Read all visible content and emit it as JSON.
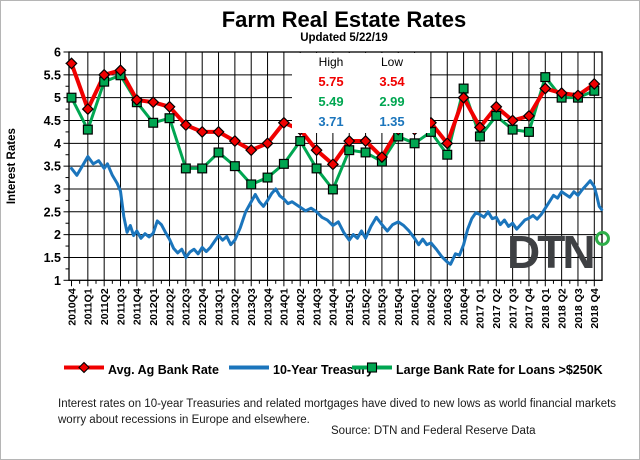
{
  "title": "Farm Real Estate Rates",
  "subtitle": "Updated  5/22/19",
  "stats": {
    "high_header": "High",
    "low_header": "Low",
    "rows": [
      {
        "series": "Avg. Ag Bank Rate",
        "high": "5.75",
        "low": "3.54",
        "color": "#f00000"
      },
      {
        "series": "Large Bank Rate for Loans >$250K",
        "high": "5.49",
        "low": "2.99",
        "color": "#00a651"
      },
      {
        "series": "10-Year Treasury",
        "high": "3.71",
        "low": "1.35",
        "color": "#1b75bc"
      }
    ]
  },
  "legend": [
    {
      "label": "Avg. Ag Bank Rate",
      "color": "#f00000",
      "marker": "diamond"
    },
    {
      "label": "10-Year Treasury",
      "color": "#1b75bc",
      "marker": "line"
    },
    {
      "label": "Large Bank Rate for Loans >$250K",
      "color": "#00a651",
      "marker": "square"
    }
  ],
  "footnote": "Interest rates on 10-year Treasuries and related mortgages have dived to new lows as world financial markets worry about recessions in Europe and elsewhere.",
  "source": "Source: DTN  and Federal Reserve Data",
  "logo_text": "DTN",
  "chart_data": {
    "type": "line",
    "title": "Farm Real Estate Rates",
    "xlabel": "",
    "ylabel": "Interest Rates",
    "ylim": [
      1,
      6
    ],
    "ytick_step": 0.5,
    "grid": true,
    "legend_position": "bottom",
    "categories": [
      "2010Q4",
      "2011Q1",
      "2011Q2",
      "2011Q3",
      "2011Q4",
      "2012Q1",
      "2012Q2",
      "2012Q3",
      "2012Q4",
      "2013Q1",
      "2013Q2",
      "2013Q3",
      "2013Q4",
      "2014Q1",
      "2014Q2",
      "2014Q3",
      "2014Q4",
      "2015Q1",
      "2015Q2",
      "2015Q3",
      "2015Q4",
      "2016Q1",
      "2016Q2",
      "2016Q3",
      "2016Q4",
      "2017 Q1",
      "2017 Q2",
      "2017 Q3",
      "2017 Q4",
      "2018 Q1",
      "2018 Q2",
      "2018 Q3",
      "2018 Q4"
    ],
    "series": [
      {
        "name": "Avg. Ag Bank Rate",
        "color": "#f00000",
        "marker": "diamond",
        "line_width": 4,
        "values": [
          5.75,
          4.75,
          5.5,
          5.6,
          4.95,
          4.9,
          4.8,
          4.4,
          4.25,
          4.25,
          4.05,
          3.85,
          4.0,
          4.45,
          4.3,
          3.85,
          3.54,
          4.05,
          4.05,
          3.7,
          4.3,
          4.3,
          4.45,
          4.0,
          5.0,
          4.35,
          4.8,
          4.5,
          4.6,
          5.2,
          5.1,
          5.05,
          5.3
        ],
        "high": 5.75,
        "low": 3.54
      },
      {
        "name": "Large Bank Rate for Loans >$250K",
        "color": "#00a651",
        "marker": "square",
        "line_width": 3,
        "values": [
          5.0,
          4.3,
          5.35,
          5.49,
          4.9,
          4.45,
          4.55,
          3.45,
          3.45,
          3.8,
          3.5,
          3.1,
          3.25,
          3.55,
          4.05,
          3.45,
          2.99,
          3.85,
          3.8,
          3.6,
          4.15,
          4.0,
          4.25,
          3.75,
          5.2,
          4.15,
          4.6,
          4.3,
          4.25,
          5.45,
          5.0,
          5.0,
          5.15
        ],
        "high": 5.49,
        "low": 2.99
      },
      {
        "name": "10-Year Treasury",
        "color": "#1b75bc",
        "marker": "none",
        "line_width": 3,
        "points": [
          [
            0,
            3.45
          ],
          [
            0.33,
            3.3
          ],
          [
            0.66,
            3.5
          ],
          [
            1,
            3.71
          ],
          [
            1.33,
            3.55
          ],
          [
            1.66,
            3.62
          ],
          [
            2,
            3.45
          ],
          [
            2.2,
            3.55
          ],
          [
            2.5,
            3.3
          ],
          [
            2.8,
            3.12
          ],
          [
            3,
            2.95
          ],
          [
            3.2,
            2.4
          ],
          [
            3.4,
            2.05
          ],
          [
            3.6,
            2.2
          ],
          [
            3.8,
            1.98
          ],
          [
            4,
            2.08
          ],
          [
            4.25,
            1.92
          ],
          [
            4.5,
            2.02
          ],
          [
            4.75,
            1.95
          ],
          [
            5,
            2.03
          ],
          [
            5.25,
            2.3
          ],
          [
            5.5,
            2.22
          ],
          [
            5.75,
            2.05
          ],
          [
            6,
            1.9
          ],
          [
            6.25,
            1.7
          ],
          [
            6.5,
            1.6
          ],
          [
            6.75,
            1.68
          ],
          [
            7,
            1.5
          ],
          [
            7.25,
            1.62
          ],
          [
            7.5,
            1.68
          ],
          [
            7.75,
            1.58
          ],
          [
            8,
            1.72
          ],
          [
            8.25,
            1.63
          ],
          [
            8.5,
            1.72
          ],
          [
            8.75,
            1.85
          ],
          [
            9,
            1.98
          ],
          [
            9.25,
            1.88
          ],
          [
            9.5,
            1.96
          ],
          [
            9.75,
            1.78
          ],
          [
            10,
            1.88
          ],
          [
            10.33,
            2.15
          ],
          [
            10.66,
            2.5
          ],
          [
            11,
            2.72
          ],
          [
            11.25,
            2.88
          ],
          [
            11.5,
            2.72
          ],
          [
            11.75,
            2.62
          ],
          [
            12,
            2.75
          ],
          [
            12.25,
            2.9
          ],
          [
            12.5,
            3.0
          ],
          [
            12.75,
            2.85
          ],
          [
            13,
            2.78
          ],
          [
            13.25,
            2.68
          ],
          [
            13.5,
            2.72
          ],
          [
            13.75,
            2.66
          ],
          [
            14,
            2.6
          ],
          [
            14.33,
            2.52
          ],
          [
            14.66,
            2.58
          ],
          [
            15,
            2.5
          ],
          [
            15.33,
            2.38
          ],
          [
            15.66,
            2.32
          ],
          [
            16,
            2.2
          ],
          [
            16.33,
            2.28
          ],
          [
            16.66,
            2.05
          ],
          [
            17,
            1.88
          ],
          [
            17.25,
            2.0
          ],
          [
            17.5,
            1.92
          ],
          [
            17.75,
            2.08
          ],
          [
            18,
            1.92
          ],
          [
            18.33,
            2.18
          ],
          [
            18.66,
            2.38
          ],
          [
            19,
            2.22
          ],
          [
            19.33,
            2.08
          ],
          [
            19.66,
            2.22
          ],
          [
            20,
            2.28
          ],
          [
            20.33,
            2.2
          ],
          [
            20.66,
            2.08
          ],
          [
            21,
            1.92
          ],
          [
            21.25,
            1.78
          ],
          [
            21.5,
            1.9
          ],
          [
            21.75,
            1.78
          ],
          [
            22,
            1.82
          ],
          [
            22.33,
            1.68
          ],
          [
            22.66,
            1.52
          ],
          [
            23,
            1.4
          ],
          [
            23.2,
            1.35
          ],
          [
            23.5,
            1.58
          ],
          [
            23.75,
            1.55
          ],
          [
            24,
            1.78
          ],
          [
            24.25,
            2.12
          ],
          [
            24.5,
            2.35
          ],
          [
            24.75,
            2.48
          ],
          [
            25,
            2.44
          ],
          [
            25.25,
            2.38
          ],
          [
            25.5,
            2.5
          ],
          [
            25.75,
            2.35
          ],
          [
            26,
            2.38
          ],
          [
            26.25,
            2.22
          ],
          [
            26.5,
            2.32
          ],
          [
            26.75,
            2.18
          ],
          [
            27,
            2.25
          ],
          [
            27.25,
            2.12
          ],
          [
            27.5,
            2.22
          ],
          [
            27.75,
            2.32
          ],
          [
            28,
            2.36
          ],
          [
            28.25,
            2.42
          ],
          [
            28.5,
            2.34
          ],
          [
            28.75,
            2.44
          ],
          [
            29,
            2.58
          ],
          [
            29.25,
            2.72
          ],
          [
            29.5,
            2.86
          ],
          [
            29.75,
            2.8
          ],
          [
            30,
            2.94
          ],
          [
            30.25,
            2.88
          ],
          [
            30.5,
            2.82
          ],
          [
            30.75,
            2.94
          ],
          [
            31,
            2.86
          ],
          [
            31.25,
            2.98
          ],
          [
            31.5,
            3.08
          ],
          [
            31.75,
            3.18
          ],
          [
            32,
            3.05
          ],
          [
            32.15,
            2.85
          ],
          [
            32.3,
            2.62
          ],
          [
            32.45,
            2.55
          ]
        ],
        "high": 3.71,
        "low": 1.35
      }
    ]
  }
}
